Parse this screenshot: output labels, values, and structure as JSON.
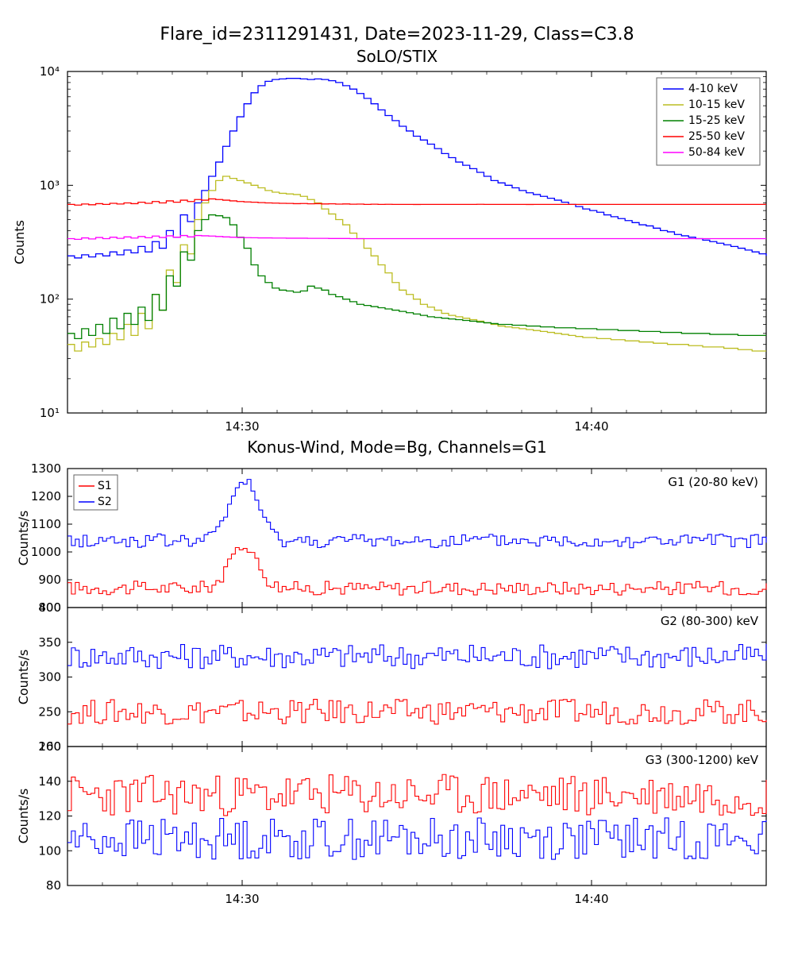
{
  "suptitle": "Flare_id=2311291431, Date=2023-11-29, Class=C3.8",
  "panel1": {
    "title": "SoLO/STIX",
    "ylabel": "Counts",
    "yscale": "log",
    "ylim": [
      10,
      10000
    ],
    "yticks": [
      10,
      100,
      1000,
      10000
    ],
    "ytick_labels": [
      "10¹",
      "10²",
      "10³",
      "10⁴"
    ],
    "xlim": [
      0,
      100
    ],
    "xticks": [
      25,
      75
    ],
    "xtick_labels": [
      "14:30",
      "14:40"
    ],
    "legend_pos": "upper-right",
    "series": [
      {
        "label": "4-10 keV",
        "color": "#0000ff"
      },
      {
        "label": "10-15 keV",
        "color": "#bcbd22"
      },
      {
        "label": "15-25 keV",
        "color": "#008000"
      },
      {
        "label": "25-50 keV",
        "color": "#ff0000"
      },
      {
        "label": "50-84 keV",
        "color": "#ff00ff"
      }
    ],
    "data": {
      "blue": [
        240,
        230,
        245,
        235,
        250,
        240,
        260,
        245,
        270,
        255,
        290,
        260,
        320,
        280,
        400,
        350,
        550,
        480,
        700,
        900,
        1200,
        1600,
        2200,
        3000,
        4000,
        5200,
        6500,
        7500,
        8200,
        8500,
        8600,
        8700,
        8700,
        8600,
        8500,
        8600,
        8500,
        8300,
        8000,
        7500,
        7000,
        6400,
        5800,
        5200,
        4600,
        4100,
        3700,
        3300,
        3000,
        2700,
        2500,
        2300,
        2100,
        1900,
        1750,
        1600,
        1500,
        1400,
        1300,
        1200,
        1100,
        1050,
        1000,
        950,
        900,
        860,
        830,
        800,
        770,
        740,
        710,
        680,
        650,
        620,
        600,
        580,
        550,
        530,
        510,
        490,
        470,
        450,
        440,
        420,
        400,
        390,
        370,
        360,
        350,
        340,
        330,
        320,
        310,
        300,
        290,
        280,
        270,
        260,
        250,
        240
      ],
      "olive": [
        40,
        35,
        42,
        38,
        45,
        40,
        50,
        44,
        60,
        48,
        75,
        55,
        110,
        80,
        180,
        140,
        300,
        250,
        500,
        700,
        900,
        1100,
        1200,
        1150,
        1100,
        1050,
        1000,
        950,
        900,
        870,
        850,
        840,
        830,
        800,
        750,
        700,
        620,
        560,
        500,
        450,
        380,
        340,
        280,
        240,
        200,
        170,
        140,
        120,
        110,
        100,
        90,
        85,
        80,
        75,
        72,
        70,
        68,
        66,
        64,
        62,
        60,
        58,
        57,
        56,
        55,
        54,
        53,
        52,
        51,
        50,
        49,
        48,
        47,
        46,
        46,
        45,
        45,
        44,
        44,
        43,
        43,
        42,
        42,
        41,
        41,
        40,
        40,
        40,
        39,
        39,
        38,
        38,
        38,
        37,
        37,
        36,
        36,
        35,
        35,
        35
      ],
      "green": [
        50,
        45,
        55,
        48,
        60,
        50,
        68,
        55,
        75,
        60,
        85,
        65,
        110,
        80,
        160,
        130,
        260,
        220,
        400,
        500,
        550,
        540,
        520,
        450,
        350,
        280,
        200,
        160,
        140,
        125,
        120,
        118,
        115,
        118,
        130,
        125,
        120,
        110,
        105,
        100,
        95,
        90,
        88,
        86,
        84,
        82,
        80,
        78,
        76,
        74,
        72,
        70,
        69,
        68,
        67,
        66,
        65,
        64,
        63,
        62,
        61,
        60,
        60,
        59,
        59,
        58,
        58,
        57,
        57,
        56,
        56,
        56,
        55,
        55,
        55,
        54,
        54,
        54,
        53,
        53,
        53,
        52,
        52,
        52,
        51,
        51,
        51,
        50,
        50,
        50,
        50,
        49,
        49,
        49,
        49,
        48,
        48,
        48,
        48,
        48
      ],
      "red": [
        680,
        670,
        685,
        675,
        690,
        680,
        695,
        685,
        700,
        690,
        710,
        695,
        720,
        700,
        730,
        710,
        740,
        720,
        750,
        740,
        760,
        750,
        740,
        730,
        720,
        715,
        710,
        705,
        700,
        698,
        695,
        693,
        690,
        692,
        688,
        690,
        686,
        688,
        684,
        686,
        682,
        684,
        680,
        682,
        680,
        681,
        680,
        680,
        680,
        679,
        680,
        680,
        680,
        680,
        680,
        680,
        680,
        680,
        681,
        680,
        680,
        680,
        680,
        680,
        680,
        679,
        680,
        680,
        680,
        680,
        680,
        680,
        680,
        680,
        680,
        680,
        680,
        680,
        680,
        680,
        680,
        680,
        680,
        680,
        680,
        680,
        680,
        680,
        680,
        680,
        680,
        680,
        680,
        680,
        680,
        680,
        680,
        680,
        680,
        680
      ],
      "magenta": [
        340,
        335,
        345,
        338,
        348,
        340,
        350,
        342,
        352,
        344,
        355,
        346,
        358,
        348,
        360,
        350,
        362,
        352,
        362,
        360,
        358,
        355,
        352,
        350,
        348,
        347,
        346,
        345,
        345,
        344,
        344,
        343,
        343,
        343,
        342,
        342,
        342,
        341,
        341,
        341,
        340,
        340,
        340,
        340,
        340,
        340,
        340,
        340,
        340,
        340,
        340,
        340,
        340,
        340,
        340,
        340,
        340,
        340,
        340,
        340,
        340,
        340,
        340,
        340,
        340,
        340,
        340,
        340,
        340,
        340,
        340,
        340,
        340,
        340,
        340,
        340,
        340,
        340,
        340,
        340,
        340,
        340,
        340,
        340,
        340,
        340,
        340,
        340,
        340,
        340,
        340,
        340,
        340,
        340,
        340,
        340,
        340,
        340,
        340,
        340
      ]
    }
  },
  "panel2_title": "Konus-Wind, Mode=Bg, Channels=G1",
  "panel2_xticks": [
    25,
    75
  ],
  "panel2_xtick_labels": [
    "14:30",
    "14:40"
  ],
  "subpanels": [
    {
      "label": "G1 (20-80 keV)",
      "ylabel": "Counts/s",
      "ylim": [
        800,
        1300
      ],
      "ytick_step": 100,
      "legend": true,
      "s1_base": 870,
      "s1_noise": 25,
      "s1_peak": 1020,
      "s1_peak_pos": 25,
      "s2_base": 1040,
      "s2_noise": 25,
      "s2_peak": 1260,
      "s2_peak_pos": 25
    },
    {
      "label": "G2 (80-300) keV",
      "ylabel": "Counts/s",
      "ylim": [
        200,
        400
      ],
      "ytick_step": 50,
      "legend": false,
      "s1_base": 250,
      "s1_noise": 18,
      "s1_peak": 0,
      "s1_peak_pos": 0,
      "s2_base": 330,
      "s2_noise": 18,
      "s2_peak": 0,
      "s2_peak_pos": 0
    },
    {
      "label": "G3 (300-1200) keV",
      "ylabel": "Counts/s",
      "ylim": [
        80,
        160
      ],
      "ytick_step": 20,
      "legend": false,
      "s1_base": 132,
      "s1_noise": 12,
      "s1_peak": 0,
      "s1_peak_pos": 0,
      "s2_base": 107,
      "s2_noise": 12,
      "s2_peak": 0,
      "s2_peak_pos": 0
    }
  ],
  "kw_legend": [
    {
      "label": "S1",
      "color": "#ff0000"
    },
    {
      "label": "S2",
      "color": "#0000ff"
    }
  ],
  "colors": {
    "axis": "#000000",
    "background": "#ffffff"
  }
}
